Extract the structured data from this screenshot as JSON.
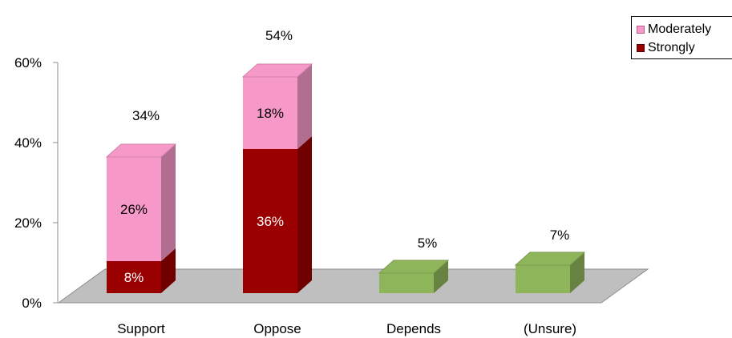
{
  "chart_data": {
    "type": "bar",
    "categories": [
      "Support",
      "Oppose",
      "Depends",
      "(Unsure)"
    ],
    "series": [
      {
        "name": "Strongly",
        "color": "#9b0000",
        "values": [
          8,
          36,
          null,
          null
        ]
      },
      {
        "name": "Moderately",
        "color": "#f799c8",
        "values": [
          26,
          18,
          null,
          null
        ]
      }
    ],
    "single_values": [
      null,
      null,
      5,
      7
    ],
    "single_color": "#8fb55a",
    "segment_labels": [
      [
        "8%",
        "26%"
      ],
      [
        "36%",
        "18%"
      ],
      [
        null,
        null
      ],
      [
        null,
        null
      ]
    ],
    "total_labels": [
      "34%",
      "54%",
      "5%",
      "7%"
    ],
    "y_ticks": [
      {
        "value": 0,
        "label": "0%"
      },
      {
        "value": 20,
        "label": "20%"
      },
      {
        "value": 40,
        "label": "40%"
      },
      {
        "value": 60,
        "label": "60%"
      }
    ],
    "ylim": [
      0,
      60
    ],
    "grid": false,
    "legend_position": "top-right",
    "three_d": true
  },
  "legend": {
    "items": [
      {
        "label": "Moderately",
        "color": "#f799c8"
      },
      {
        "label": "Strongly",
        "color": "#9b0000"
      }
    ]
  }
}
